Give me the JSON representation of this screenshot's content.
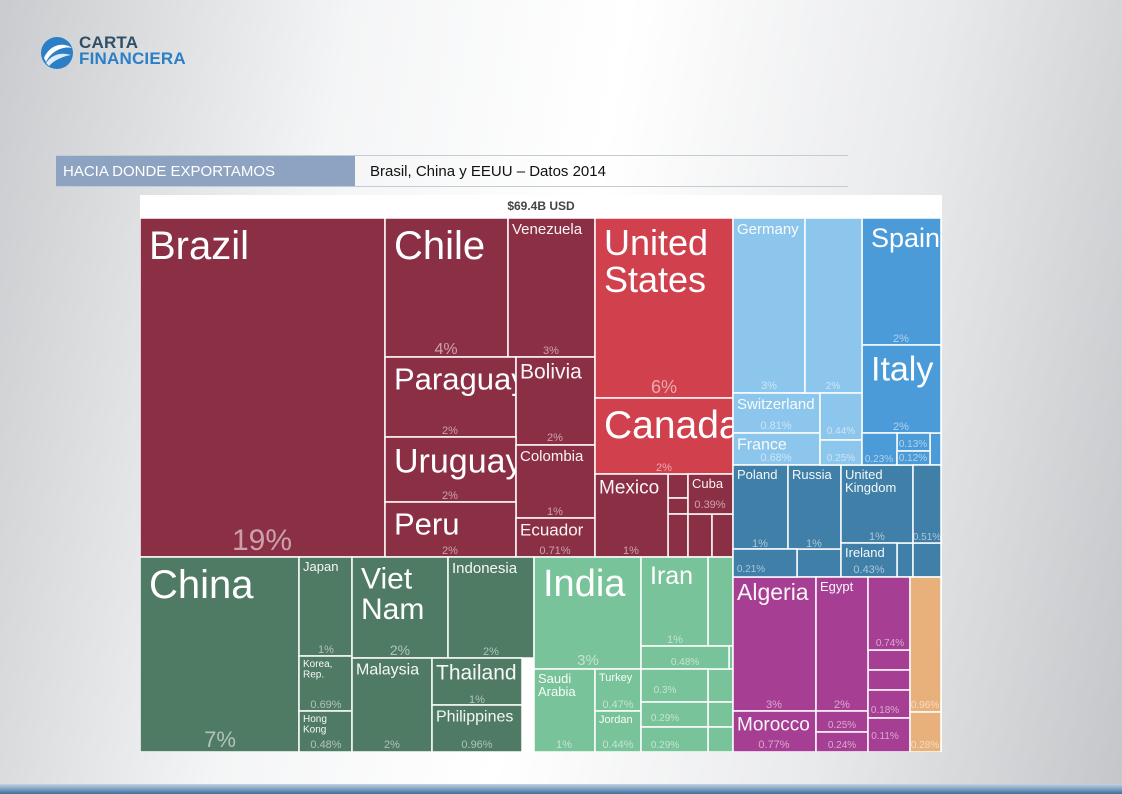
{
  "logo": {
    "line1": "CARTA",
    "line2": "FINANCIERA"
  },
  "header": {
    "tab": "HACIA DONDE EXPORTAMOS",
    "subtitle": "Brasil, China y EEUU – Datos 2014"
  },
  "chart_data": {
    "type": "treemap",
    "title": "$69.4B USD",
    "colors": {
      "south_america": "#8b2f45",
      "north_america": "#d1404d",
      "asia": "#4f7a63",
      "asia_light": "#79c39a",
      "europe_light": "#8dc6ec",
      "europe": "#4b9bd8",
      "europe_dark": "#3f7fa8",
      "africa": "#a63f93",
      "africa_light": "#e8b07a"
    },
    "items": [
      {
        "name": "Brazil",
        "value": "19%"
      },
      {
        "name": "Chile",
        "value": "4%"
      },
      {
        "name": "Venezuela",
        "value": "3%"
      },
      {
        "name": "Paraguay",
        "value": "2%"
      },
      {
        "name": "Bolivia",
        "value": "2%"
      },
      {
        "name": "Uruguay",
        "value": "2%"
      },
      {
        "name": "Colombia",
        "value": "1%"
      },
      {
        "name": "Peru",
        "value": "2%"
      },
      {
        "name": "Ecuador",
        "value": "0.71%"
      },
      {
        "name": "United States",
        "value": "6%"
      },
      {
        "name": "Canada",
        "value": "2%"
      },
      {
        "name": "Mexico",
        "value": "1%"
      },
      {
        "name": "Cuba",
        "value": "0.39%"
      },
      {
        "name": "China",
        "value": "7%"
      },
      {
        "name": "Japan",
        "value": "1%"
      },
      {
        "name": "Korea, Rep.",
        "value": "0.69%"
      },
      {
        "name": "Hong Kong",
        "value": "0.48%"
      },
      {
        "name": "Viet Nam",
        "value": "2%"
      },
      {
        "name": "Indonesia",
        "value": "2%"
      },
      {
        "name": "Malaysia",
        "value": "2%"
      },
      {
        "name": "Thailand",
        "value": "1%"
      },
      {
        "name": "Philippines",
        "value": "0.96%"
      },
      {
        "name": "India",
        "value": "3%"
      },
      {
        "name": "Iran",
        "value": "1%"
      },
      {
        "name": "Saudi Arabia",
        "value": "1%"
      },
      {
        "name": "Turkey",
        "value": "0.47%"
      },
      {
        "name": "Jordan",
        "value": "0.44%"
      },
      {
        "name": "Germany",
        "value": "3%"
      },
      {
        "name": "Spain",
        "value": "2%"
      },
      {
        "name": "Italy",
        "value": "2%"
      },
      {
        "name": "Switzerland",
        "value": "0.81%"
      },
      {
        "name": "France",
        "value": "0.68%"
      },
      {
        "name": "Poland",
        "value": "1%"
      },
      {
        "name": "Russia",
        "value": "1%"
      },
      {
        "name": "United Kingdom",
        "value": "1%"
      },
      {
        "name": "Ireland",
        "value": "0.43%"
      },
      {
        "name": "Algeria",
        "value": "3%"
      },
      {
        "name": "Egypt",
        "value": "2%"
      },
      {
        "name": "Morocco",
        "value": "0.77%"
      }
    ],
    "unlabeled_values": [
      "0.48%",
      "0.3%",
      "0.29%",
      "0.29%",
      "2%",
      "0.44%",
      "0.25%",
      "0.13%",
      "0.23%",
      "0.12%",
      "0.21%",
      "0.51%",
      "0.25%",
      "0.24%",
      "0.74%",
      "0.18%",
      "0.11%",
      "0.96%",
      "0.28%"
    ]
  }
}
